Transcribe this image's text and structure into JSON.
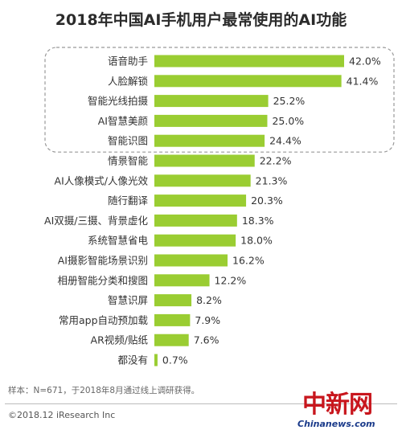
{
  "chart_data": {
    "type": "bar",
    "orientation": "horizontal",
    "title": "2018年中国AI手机用户最常使用的AI功能",
    "categories": [
      "语音助手",
      "人脸解锁",
      "智能光线拍摄",
      "AI智慧美颜",
      "智能识图",
      "情景智能",
      "AI人像模式/人像光效",
      "随行翻译",
      "AI双摄/三摄、背景虚化",
      "系统智慧省电",
      "AI摄影智能场景识别",
      "相册智能分类和搜图",
      "智慧识屏",
      "常用app自动预加载",
      "AR视频/贴纸",
      "都没有"
    ],
    "values": [
      42.0,
      41.4,
      25.2,
      25.0,
      24.4,
      22.2,
      21.3,
      20.3,
      18.3,
      18.0,
      16.2,
      12.2,
      8.2,
      7.9,
      7.6,
      0.7
    ],
    "value_labels": [
      "42.0%",
      "41.4%",
      "25.2%",
      "25.0%",
      "24.4%",
      "22.2%",
      "21.3%",
      "20.3%",
      "18.3%",
      "18.0%",
      "16.2%",
      "12.2%",
      "8.2%",
      "7.9%",
      "7.6%",
      "0.7%"
    ],
    "unit": "%",
    "xlim": [
      0,
      42.0
    ],
    "grid": false,
    "highlight_group": [
      0,
      1,
      2,
      3,
      4
    ],
    "bar_color": "#9acd32",
    "highlight_border_color": "#999999"
  },
  "footer": {
    "note": "样本：N=671，于2018年8月通过线上调研获得。",
    "copyright": "©2018.12 iResearch Inc"
  },
  "watermark": {
    "cn": "中新网",
    "en": "Chinanews.com"
  }
}
